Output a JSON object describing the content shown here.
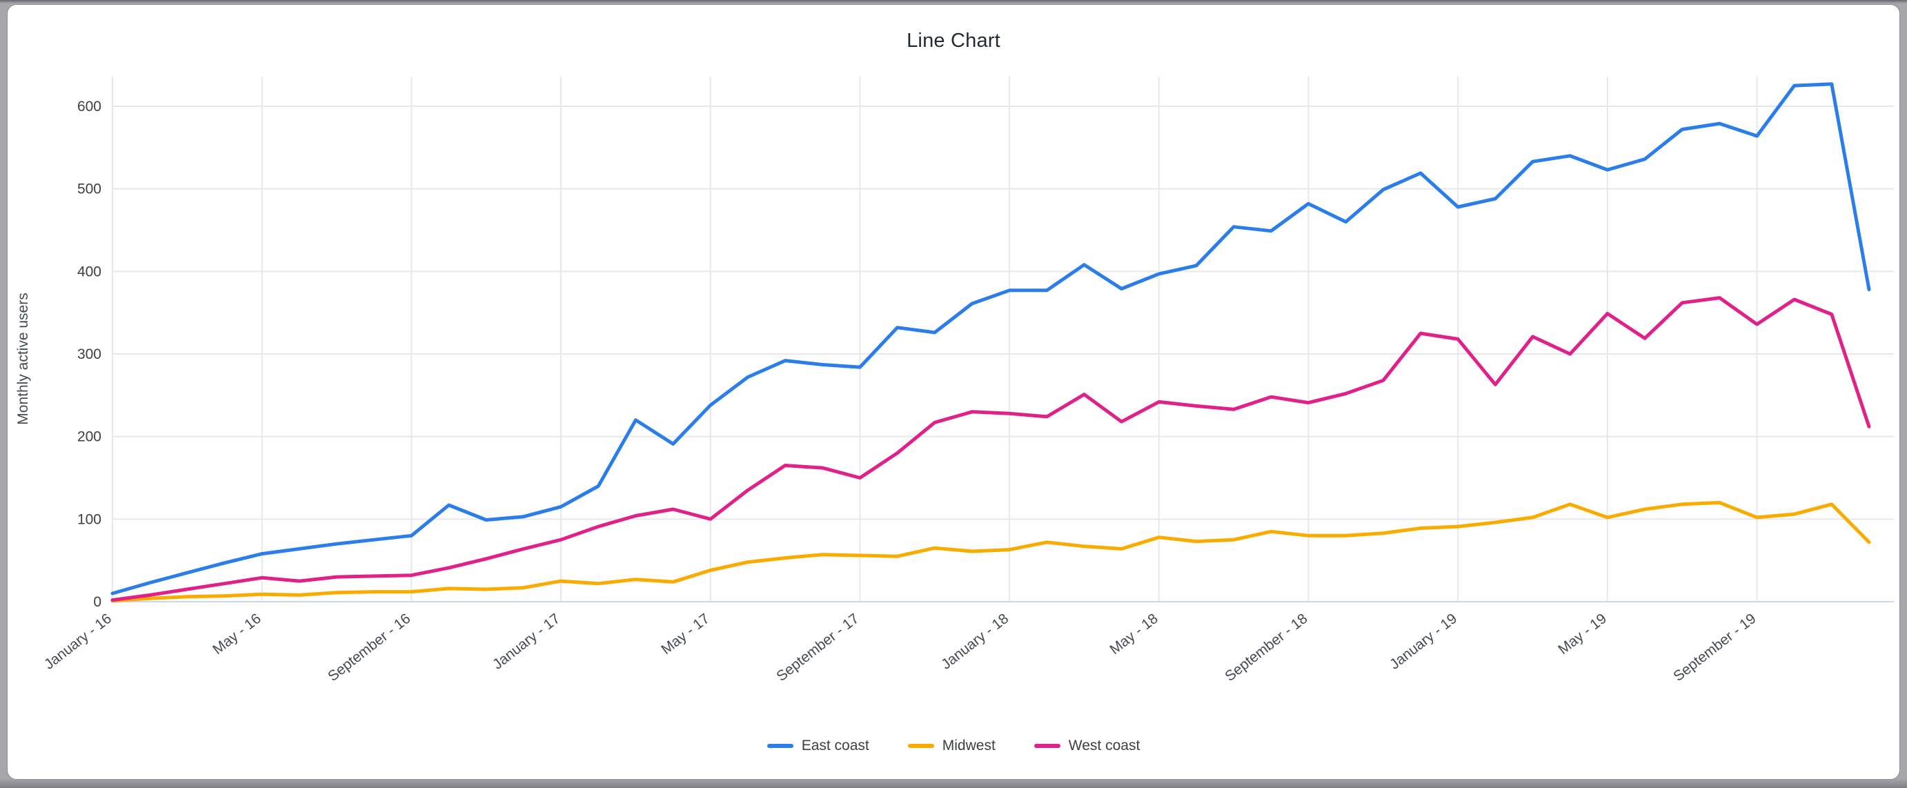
{
  "window": {
    "background_color": "#a6a6ab",
    "card_color": "#ffffff"
  },
  "chart_data": {
    "type": "line",
    "title": "Line Chart",
    "xlabel": "",
    "ylabel": "Monthly active users",
    "ylim": [
      0,
      640
    ],
    "y_ticks": [
      0,
      100,
      200,
      300,
      400,
      500,
      600
    ],
    "grid": "on",
    "legend_position": "bottom-center",
    "x_tick_every": 4,
    "x_tick_labels": [
      "January - 16",
      "May - 16",
      "September - 16",
      "January - 17",
      "May - 17",
      "September - 17",
      "January - 18",
      "May - 18",
      "September - 18",
      "January - 19",
      "May - 19",
      "September - 19"
    ],
    "n_points": 48,
    "series": [
      {
        "name": "East coast",
        "color": "#2b7de9",
        "values": [
          10,
          23,
          35,
          47,
          58,
          64,
          70,
          75,
          80,
          117,
          99,
          103,
          115,
          140,
          220,
          191,
          238,
          272,
          292,
          287,
          284,
          332,
          326,
          361,
          377,
          377,
          408,
          379,
          397,
          407,
          454,
          449,
          482,
          460,
          499,
          519,
          478,
          488,
          533,
          540,
          523,
          536,
          572,
          579,
          564,
          625,
          627,
          378
        ]
      },
      {
        "name": "Midwest",
        "color": "#f9ab00",
        "values": [
          1,
          4,
          6,
          7,
          9,
          8,
          11,
          12,
          12,
          16,
          15,
          17,
          25,
          22,
          27,
          24,
          38,
          48,
          53,
          57,
          56,
          55,
          65,
          61,
          63,
          72,
          67,
          64,
          78,
          73,
          75,
          85,
          80,
          80,
          83,
          89,
          91,
          96,
          102,
          118,
          102,
          112,
          118,
          120,
          102,
          106,
          118,
          72
        ]
      },
      {
        "name": "West coast",
        "color": "#e0218a",
        "values": [
          2,
          8,
          15,
          22,
          29,
          25,
          30,
          31,
          32,
          41,
          52,
          64,
          75,
          91,
          104,
          112,
          100,
          135,
          165,
          162,
          150,
          180,
          217,
          230,
          228,
          224,
          251,
          218,
          242,
          237,
          233,
          248,
          241,
          252,
          268,
          325,
          318,
          263,
          321,
          300,
          349,
          319,
          362,
          368,
          336,
          366,
          348,
          212
        ]
      }
    ],
    "colors": {
      "gridline": "#e8e8e8",
      "zero_axis": "#ccd6ea",
      "tick_label": "#3c4043",
      "x_label": "#424a53",
      "title": "#212b36"
    }
  }
}
